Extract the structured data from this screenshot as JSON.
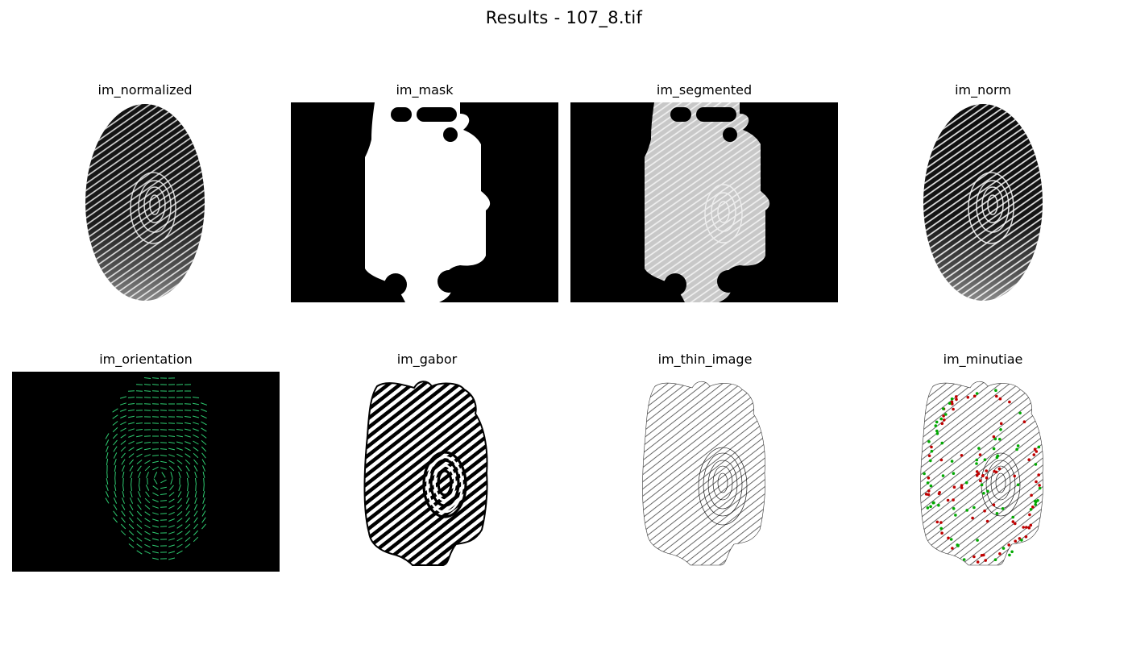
{
  "figure": {
    "title": "Results - 107_8.tif",
    "colors": {
      "background": "#ffffff",
      "image_black": "#000000",
      "orientation_line": "#2ecc71",
      "minutiae_ending": "#c00000",
      "minutiae_bifurcation": "#00aa00"
    }
  },
  "panels": [
    {
      "title": "im_normalized"
    },
    {
      "title": "im_mask"
    },
    {
      "title": "im_segmented"
    },
    {
      "title": "im_norm"
    },
    {
      "title": "im_orientation"
    },
    {
      "title": "im_gabor"
    },
    {
      "title": "im_thin_image"
    },
    {
      "title": "im_minutiae"
    }
  ]
}
